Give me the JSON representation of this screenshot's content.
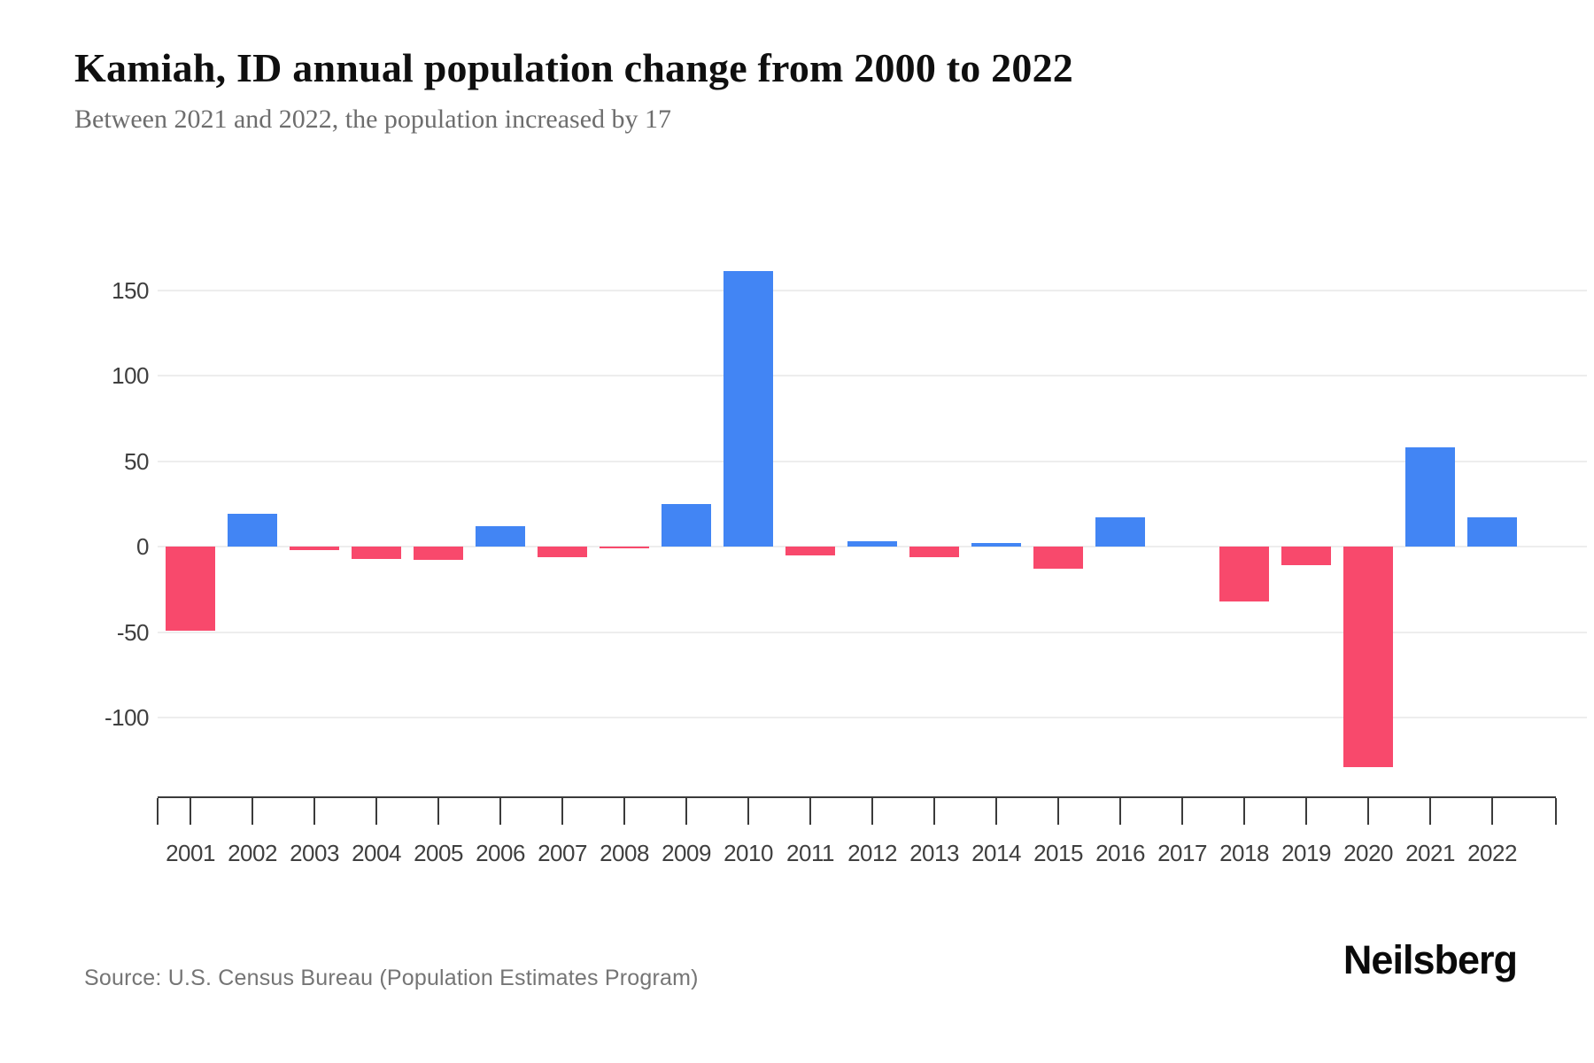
{
  "header": {
    "title": "Kamiah, ID annual population change from 2000 to 2022",
    "subtitle": "Between 2021 and 2022, the population increased by 17"
  },
  "chart_data": {
    "type": "bar",
    "title": "Kamiah, ID annual population change from 2000 to 2022",
    "subtitle": "Between 2021 and 2022, the population increased by 17",
    "categories": [
      "2001",
      "2002",
      "2003",
      "2004",
      "2005",
      "2006",
      "2007",
      "2008",
      "2009",
      "2010",
      "2011",
      "2012",
      "2013",
      "2014",
      "2015",
      "2016",
      "2017",
      "2018",
      "2019",
      "2020",
      "2021",
      "2022"
    ],
    "values": [
      -49,
      19,
      -2,
      -7,
      -8,
      12,
      -6,
      -1,
      25,
      161,
      -5,
      3,
      -6,
      2,
      -13,
      17,
      0,
      -32,
      -11,
      -129,
      58,
      17
    ],
    "xlabel": "",
    "ylabel": "",
    "yticks": [
      150,
      100,
      50,
      0,
      -50,
      -100
    ],
    "ylim": [
      -150,
      175
    ],
    "grid": true,
    "legend": "none",
    "positive_color": "#4285F4",
    "negative_color": "#F8496C",
    "gridline_color": "#ededed",
    "axis_color": "#3b3b3b"
  },
  "footer": {
    "source": "Source: U.S. Census Bureau (Population Estimates Program)",
    "brand": "Neilsberg"
  }
}
